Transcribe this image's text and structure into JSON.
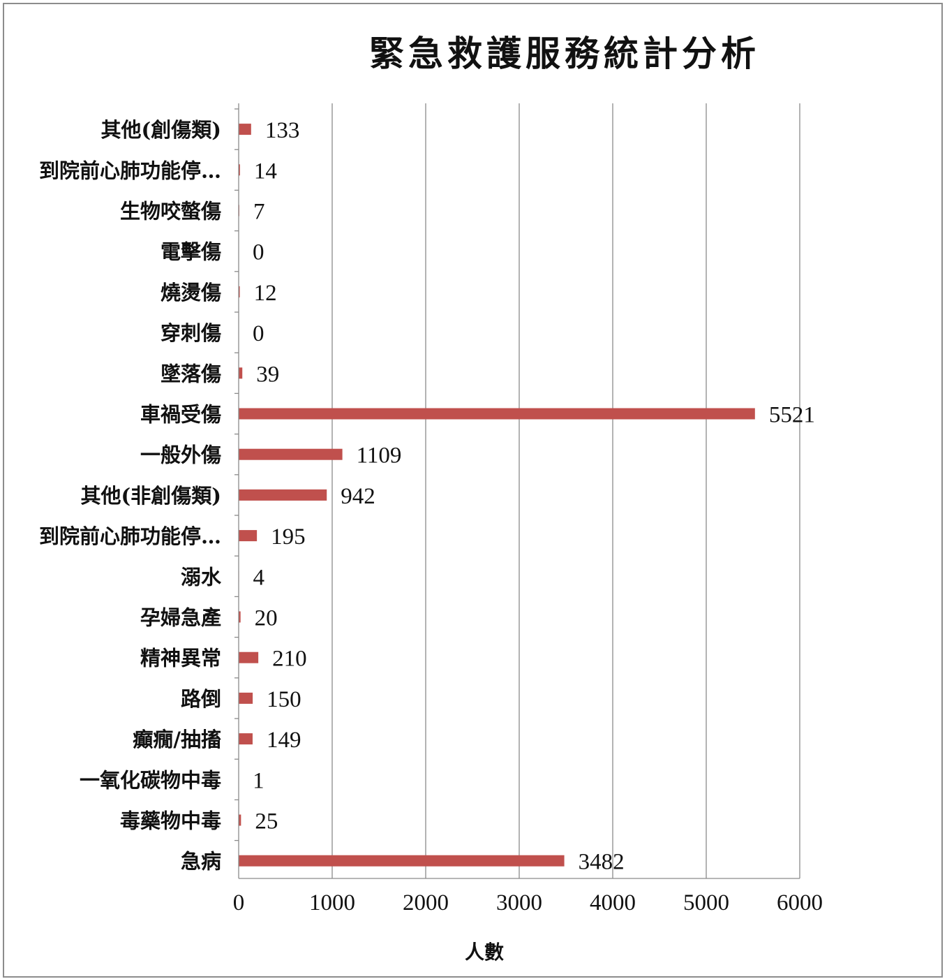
{
  "chart_data": {
    "type": "bar",
    "orientation": "horizontal",
    "title": "緊急救護服務統計分析",
    "xlabel": "人數",
    "ylabel": "",
    "xlim": [
      0,
      6000
    ],
    "x_ticks": [
      0,
      1000,
      2000,
      3000,
      4000,
      5000,
      6000
    ],
    "grid": true,
    "legend": "none",
    "bar_color": "#C0504D",
    "categories": [
      "其他(創傷類)",
      "到院前心肺功能停…",
      "生物咬螫傷",
      "電擊傷",
      "燒燙傷",
      "穿刺傷",
      "墜落傷",
      "車禍受傷",
      "一般外傷",
      "其他(非創傷類)",
      "到院前心肺功能停…",
      "溺水",
      "孕婦急產",
      "精神異常",
      "路倒",
      "癲癇/抽搐",
      "一氧化碳物中毒",
      "毒藥物中毒",
      "急病"
    ],
    "values": [
      133,
      14,
      7,
      0,
      12,
      0,
      39,
      5521,
      1109,
      942,
      195,
      4,
      20,
      210,
      150,
      149,
      1,
      25,
      3482
    ]
  }
}
